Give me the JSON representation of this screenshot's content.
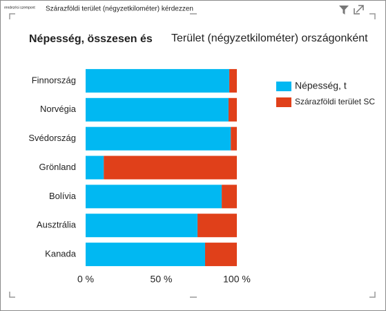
{
  "header": {
    "sort_label": "rendezési szempont",
    "query": "Szárazföldi terület (négyzetkilométer) kérdezzen"
  },
  "chart_data": {
    "type": "stacked-bar-100",
    "orientation": "horizontal",
    "title": [
      "Népesség, összesen és",
      "Terület (négyzetkilométer) országonként"
    ],
    "categories": [
      "Finnország",
      "Norvégia",
      "Svédország",
      "Grönland",
      "Bolívia",
      "Ausztrália",
      "Kanada"
    ],
    "series": [
      {
        "name": "Népesség, t",
        "color": "#01b8f2",
        "values": [
          95,
          94.5,
          96,
          12,
          90,
          74,
          79
        ]
      },
      {
        "name": "Szárazföldi terület SC",
        "color": "#e0401a",
        "values": [
          5,
          5.5,
          4,
          88,
          10,
          26,
          21
        ]
      }
    ],
    "xlim": [
      0,
      100
    ],
    "xticks": [
      {
        "value": 0,
        "label": "0 %"
      },
      {
        "value": 50,
        "label": "50 %"
      },
      {
        "value": 100,
        "label": "100 %"
      }
    ],
    "grid": false,
    "legend": "right"
  }
}
